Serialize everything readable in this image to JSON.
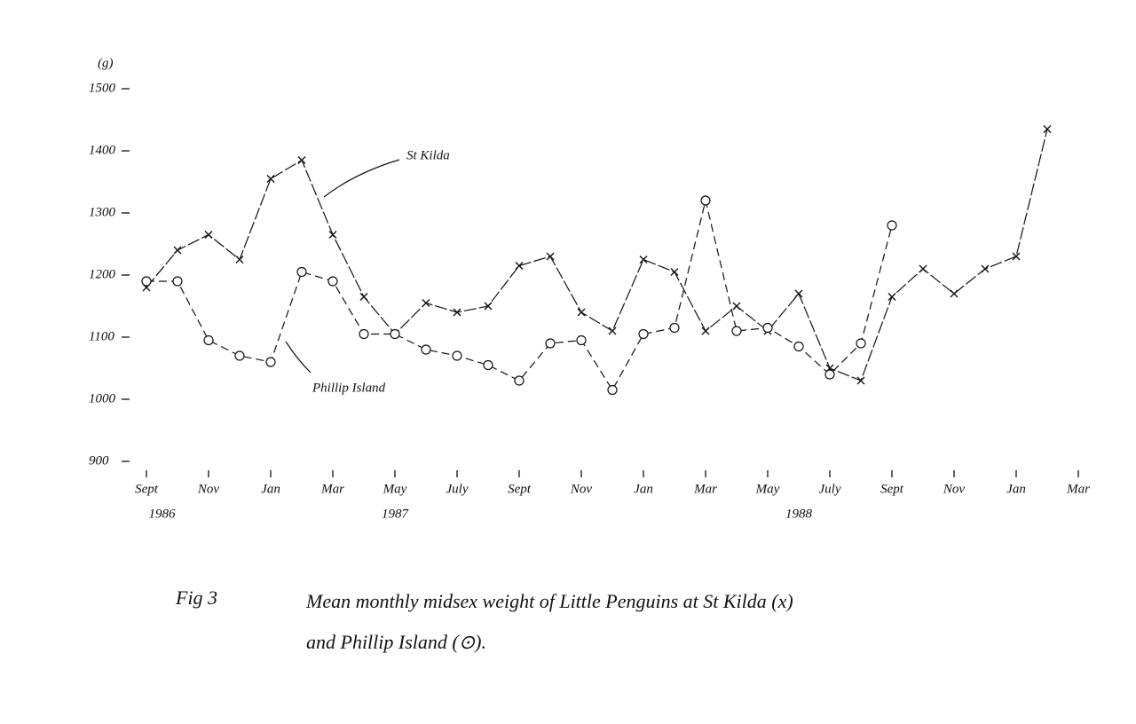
{
  "chart_data": {
    "type": "line",
    "y_label": "(g)",
    "categories": [
      "Sept",
      null,
      "Nov",
      null,
      "Jan",
      null,
      "Mar",
      null,
      "May",
      null,
      "July",
      null,
      "Sept",
      null,
      "Nov",
      null,
      "Jan",
      null,
      "Mar",
      null,
      "May",
      null,
      "July",
      null,
      "Sept",
      null,
      "Nov",
      null,
      "Jan",
      null,
      "Mar"
    ],
    "year_labels": [
      "1986",
      "1987",
      "1988"
    ],
    "series": [
      {
        "name": "St Kilda",
        "color": "#111111",
        "marker": "x",
        "values": [
          1180,
          1240,
          1265,
          1225,
          1355,
          1385,
          1265,
          1165,
          1105,
          1155,
          1140,
          1150,
          1215,
          1230,
          1140,
          1110,
          1225,
          1205,
          1110,
          1150,
          1110,
          1170,
          1050,
          1030,
          1165,
          1210,
          1170,
          1210,
          1230,
          1435,
          null
        ]
      },
      {
        "name": "Phillip Island",
        "color": "#111111",
        "marker": "circle-dot",
        "values": [
          1190,
          1190,
          1095,
          1070,
          1060,
          1205,
          1190,
          1105,
          1105,
          1080,
          1070,
          1055,
          1030,
          1090,
          1095,
          1015,
          1105,
          1115,
          1320,
          1110,
          1115,
          1085,
          1040,
          1090,
          1280,
          null,
          null,
          null,
          null,
          null,
          null
        ]
      }
    ],
    "ylim": [
      900,
      1500
    ],
    "yticks": [
      900,
      1000,
      1100,
      1200,
      1300,
      1400,
      1500
    ],
    "grid": false,
    "caption": {
      "figure": "Fig 3",
      "line1": "Mean monthly midsex weight of Little Penguins at St Kilda (x)",
      "line2": "and Phillip Island (⊙)."
    }
  }
}
